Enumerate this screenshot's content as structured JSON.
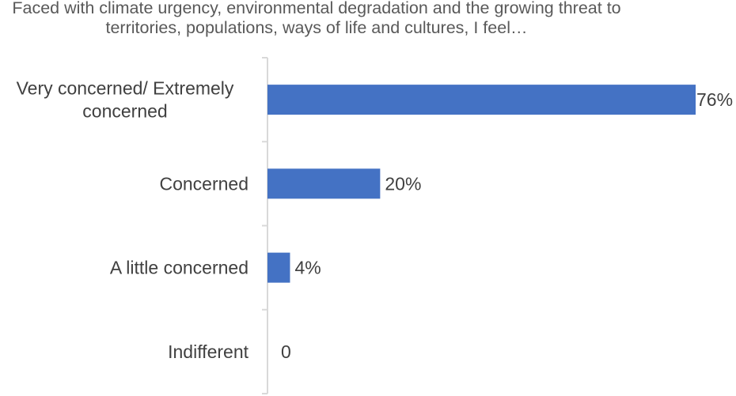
{
  "chart_data": {
    "type": "bar",
    "orientation": "horizontal",
    "title": "Faced with climate urgency, environmental degradation and the growing threat to territories, populations, ways of life and cultures, I feel…",
    "categories": [
      [
        "Very concerned/ Extremely",
        "concerned"
      ],
      [
        "Concerned"
      ],
      [
        "A little concerned"
      ],
      [
        "Indifferent"
      ]
    ],
    "values": [
      76,
      20,
      4,
      0
    ],
    "data_labels": [
      "76%",
      "20%",
      "4%",
      "0"
    ],
    "value_unit": "%",
    "xlim": [
      0,
      76
    ],
    "grid": false,
    "legend": "none",
    "bar_color": "#4472C4"
  }
}
